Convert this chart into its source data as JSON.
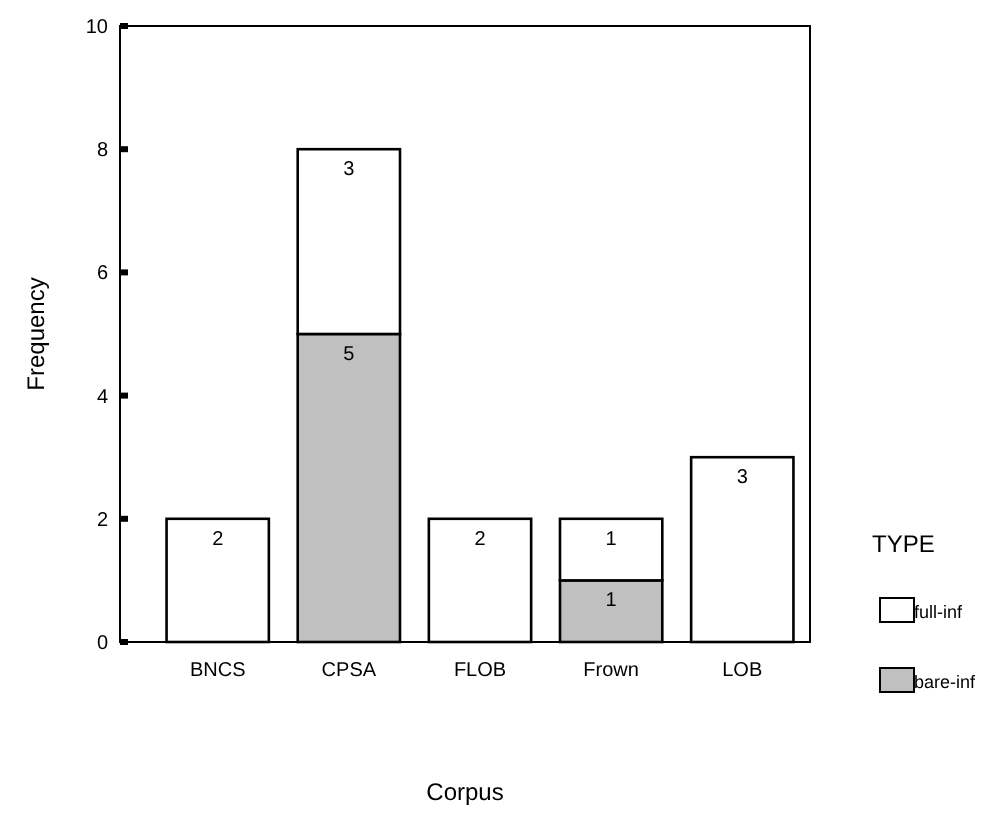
{
  "chart_data": {
    "type": "bar",
    "xlabel": "Corpus",
    "ylabel": "Frequency",
    "legend_title": "TYPE",
    "categories": [
      "BNCS",
      "CPSA",
      "FLOB",
      "Frown",
      "LOB"
    ],
    "stacked": true,
    "ylim": [
      0,
      10
    ],
    "yticks": [
      0,
      2,
      4,
      6,
      8,
      10
    ],
    "legend": "right",
    "series": [
      {
        "name": "bare-inf",
        "color": "#c0c0c0",
        "values": [
          0,
          5,
          0,
          1,
          0
        ],
        "value_labels": [
          null,
          "5",
          null,
          "1",
          null
        ]
      },
      {
        "name": "full-inf",
        "color": "#ffffff",
        "values": [
          2,
          3,
          2,
          1,
          3
        ],
        "value_labels": [
          "2",
          "3",
          "2",
          "1",
          "3"
        ]
      }
    ]
  }
}
